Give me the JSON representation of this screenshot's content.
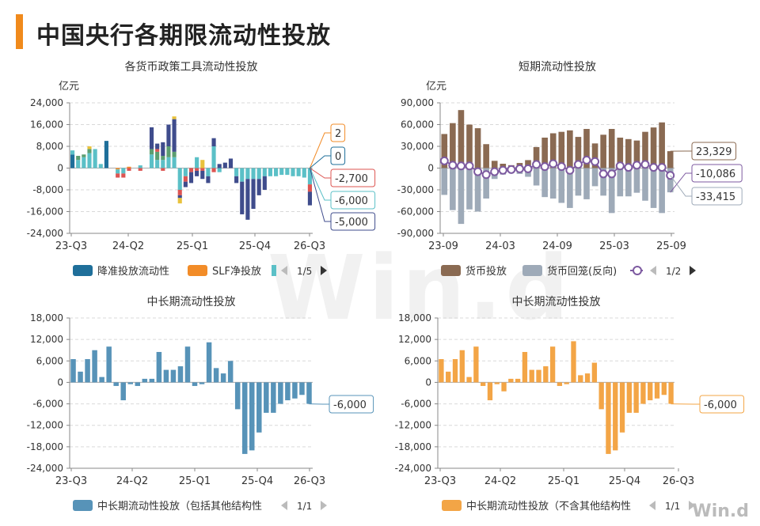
{
  "page": {
    "title": "中国央行各期限流动性投放",
    "watermark": "Win.d",
    "logo": "Win.d"
  },
  "colors": {
    "rrr": "#1f6f9a",
    "slf": "#f28c28",
    "teal": "#5bc0c7",
    "green": "#5c9e70",
    "red": "#dd5552",
    "navy": "#3f4c8c",
    "yellow": "#e9c23c",
    "brown": "#8a6a52",
    "gray": "#9eaab8",
    "purple": "#7d5aa0",
    "steel": "#5793b8",
    "orange": "#f3a546"
  },
  "chart_data": [
    {
      "type": "bar",
      "title": "各货币政策工具流动性投放",
      "ylabel": "亿元",
      "ylim": [
        -24000,
        24000
      ],
      "yticks": [
        "24,000",
        "16,000",
        "8,000",
        "0",
        "-8,000",
        "-16,000",
        "-24,000"
      ],
      "xticks": [
        "23-Q3",
        "24-Q2",
        "25-Q1",
        "25-Q4",
        "26-Q3"
      ],
      "stacked": true,
      "legend": {
        "items": [
          "降准投放流动性",
          "SLF净投放"
        ],
        "page": "1/5"
      },
      "series": [
        {
          "name": "降准投放流动性",
          "color": "rrr",
          "values": [
            5000,
            0,
            0,
            0,
            0,
            0,
            10000,
            0,
            0,
            0,
            0,
            0,
            0,
            0,
            0,
            0,
            0,
            0,
            0,
            0,
            0,
            0,
            0,
            0,
            0,
            0,
            0,
            0,
            0,
            0,
            0,
            0,
            0,
            0,
            0,
            0,
            0,
            0,
            0,
            0,
            0,
            0,
            0
          ]
        },
        {
          "name": "SLF净投放",
          "color": "slf",
          "values": [
            0,
            0,
            0,
            0,
            0,
            0,
            0,
            0,
            -500,
            0,
            500,
            0,
            0,
            0,
            0,
            0,
            0,
            0,
            0,
            0,
            0,
            0,
            0,
            0,
            0,
            0,
            0,
            0,
            0,
            0,
            0,
            0,
            0,
            0,
            0,
            0,
            0,
            0,
            0,
            0,
            0,
            0,
            2
          ]
        },
        {
          "color": "teal",
          "values": [
            1500,
            3000,
            4000,
            5500,
            7000,
            1500,
            0,
            0,
            -1500,
            -2000,
            0,
            0,
            1000,
            0,
            5000,
            3000,
            3000,
            4000,
            4000,
            -8000,
            -3000,
            0,
            4000,
            0,
            -3000,
            8000,
            -1500,
            0,
            0,
            -3000,
            -5000,
            -4000,
            -4000,
            -4000,
            -3000,
            -3000,
            -3000,
            -2500,
            -2500,
            -3000,
            -3000,
            -3500,
            -6000
          ]
        },
        {
          "color": "green",
          "values": [
            0,
            1500,
            1000,
            1500,
            0,
            0,
            0,
            0,
            0,
            0,
            0,
            0,
            0,
            0,
            2000,
            3000,
            1500,
            4000,
            2000,
            0,
            0,
            0,
            0,
            0,
            0,
            0,
            0,
            0,
            0,
            0,
            0,
            0,
            0,
            0,
            0,
            0,
            0,
            0,
            0,
            0,
            0,
            0,
            0
          ]
        },
        {
          "color": "red",
          "values": [
            0,
            0,
            0,
            0,
            0,
            0,
            0,
            0,
            -1500,
            -1500,
            -1000,
            0,
            -1000,
            0,
            0,
            1000,
            -1000,
            0,
            0,
            -2000,
            -2000,
            -1500,
            -1000,
            -1000,
            0,
            -1500,
            0,
            0,
            0,
            0,
            0,
            0,
            0,
            0,
            0,
            0,
            0,
            0,
            0,
            0,
            0,
            0,
            -2700
          ]
        },
        {
          "color": "navy",
          "values": [
            0,
            0,
            0,
            0,
            0,
            0,
            0,
            0,
            0,
            0,
            0,
            0,
            0,
            0,
            8000,
            2000,
            5000,
            8000,
            12000,
            -1000,
            -2000,
            -4000,
            -2000,
            -3000,
            -2500,
            3000,
            1500,
            2000,
            3500,
            -2500,
            -12000,
            -15000,
            -11000,
            -6000,
            -5000,
            0,
            0,
            0,
            0,
            0,
            0,
            0,
            -5000
          ]
        },
        {
          "color": "yellow",
          "values": [
            0,
            0,
            0,
            1000,
            0,
            0,
            0,
            0,
            0,
            0,
            0,
            0,
            0,
            0,
            0,
            0,
            0,
            0,
            1000,
            -2000,
            0,
            0,
            0,
            3000,
            0,
            0,
            0,
            0,
            0,
            0,
            0,
            0,
            0,
            0,
            0,
            0,
            0,
            0,
            0,
            0,
            0,
            0,
            0
          ]
        }
      ],
      "end_labels": [
        "2",
        "0",
        "-2,700",
        "-6,000",
        "-5,000"
      ]
    },
    {
      "type": "bar",
      "title": "短期流动性投放",
      "ylabel": "亿元",
      "ylim": [
        -90000,
        90000
      ],
      "yticks": [
        "90,000",
        "60,000",
        "30,000",
        "0",
        "-30,000",
        "-60,000",
        "-90,000"
      ],
      "xticks": [
        "23-09",
        "24-03",
        "24-09",
        "25-03",
        "25-09"
      ],
      "legend": {
        "items": [
          "货币投放",
          "货币回笼(反向)"
        ],
        "page": "1/2"
      },
      "series": [
        {
          "name": "货币投放",
          "color": "brown",
          "values": [
            47000,
            62000,
            80000,
            60000,
            55000,
            33000,
            10000,
            6000,
            4000,
            7000,
            11000,
            29000,
            42000,
            48000,
            50000,
            52000,
            43000,
            54000,
            34000,
            46000,
            54000,
            42000,
            40000,
            38000,
            50000,
            56000,
            63000,
            23329
          ]
        },
        {
          "name": "货币回笼(反向)",
          "color": "gray",
          "values": [
            -37000,
            -58000,
            -77000,
            -57000,
            -60000,
            -42000,
            -15000,
            -9000,
            -6000,
            -8000,
            -12000,
            -24000,
            -40000,
            -42000,
            -48000,
            -55000,
            -38000,
            -43000,
            -25000,
            -38000,
            -62000,
            -39000,
            -39000,
            -34000,
            -45000,
            -55000,
            -62000,
            -33415
          ]
        },
        {
          "name": "净投放",
          "color": "purple",
          "values": [
            10000,
            4000,
            3000,
            3000,
            -5000,
            -9000,
            -5000,
            -3000,
            -2000,
            -1000,
            -1000,
            5000,
            2000,
            6000,
            2000,
            -3000,
            5000,
            11000,
            9000,
            -8000,
            -8000,
            3000,
            1000,
            4000,
            5000,
            1000,
            1000,
            -10086
          ]
        }
      ],
      "end_labels": [
        "23,329",
        "-10,086",
        "-33,415"
      ]
    },
    {
      "type": "bar",
      "title": "中长期流动性投放",
      "ylim": [
        -24000,
        18000
      ],
      "yticks": [
        "18,000",
        "12,000",
        "6,000",
        "0",
        "-6,000",
        "-12,000",
        "-18,000",
        "-24,000"
      ],
      "xticks": [
        "23-Q3",
        "24-Q2",
        "25-Q1",
        "25-Q4",
        "26-Q3"
      ],
      "legend": {
        "items": [
          "中长期流动性投放（包括其他结构性"
        ],
        "page": "1/1"
      },
      "series": [
        {
          "name": "中长期流动性投放（包括其他结构性",
          "color": "steel",
          "values": [
            6500,
            3000,
            6500,
            9000,
            1500,
            10000,
            -1000,
            -5000,
            -500,
            -1000,
            1000,
            1000,
            8500,
            3500,
            3500,
            4500,
            10000,
            -1000,
            -500,
            11200,
            4000,
            2500,
            6000,
            -7500,
            -20000,
            -19000,
            -14000,
            -8500,
            -8500,
            -6000,
            -5000,
            -4500,
            -3500,
            -6000
          ]
        }
      ],
      "end_labels": [
        "-6,000"
      ]
    },
    {
      "type": "bar",
      "title": "中长期流动性投放",
      "ylim": [
        -24000,
        18000
      ],
      "yticks": [
        "18,000",
        "12,000",
        "6,000",
        "0",
        "-6,000",
        "-12,000",
        "-18,000",
        "-24,000"
      ],
      "xticks": [
        "23-Q3",
        "24-Q2",
        "25-Q1",
        "25-Q4",
        "26-Q3"
      ],
      "legend": {
        "items": [
          "中长期流动性投放（不含其他结构性"
        ],
        "page": "1/1"
      },
      "series": [
        {
          "name": "中长期流动性投放（不含其他结构性",
          "color": "orange",
          "values": [
            6500,
            3000,
            6500,
            9000,
            1500,
            10000,
            -1000,
            -5000,
            -500,
            -2500,
            1000,
            1000,
            8500,
            3500,
            3500,
            4500,
            10000,
            -1000,
            -500,
            11500,
            2000,
            2500,
            5500,
            -7500,
            -20000,
            -19000,
            -14000,
            -8500,
            -8500,
            -6000,
            -5000,
            -4500,
            -3500,
            -6000
          ]
        }
      ],
      "end_labels": [
        "-6,000"
      ]
    }
  ]
}
